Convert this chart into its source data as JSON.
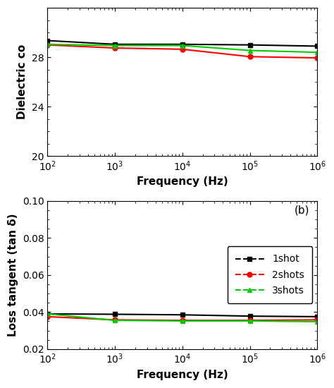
{
  "freq": [
    100.0,
    1000.0,
    10000.0,
    100000.0,
    1000000.0
  ],
  "dielectric_1shot": [
    29.35,
    29.05,
    29.05,
    29.0,
    28.9
  ],
  "dielectric_2shots": [
    29.0,
    28.75,
    28.65,
    28.05,
    27.95
  ],
  "dielectric_3shots": [
    29.05,
    28.95,
    28.95,
    28.55,
    28.4
  ],
  "loss_1shot": [
    0.039,
    0.0388,
    0.0385,
    0.0378,
    0.0375
  ],
  "loss_2shots": [
    0.0375,
    0.0358,
    0.0355,
    0.0355,
    0.0358
  ],
  "loss_3shots": [
    0.039,
    0.0355,
    0.0352,
    0.0352,
    0.0348
  ],
  "color_1shot": "#000000",
  "color_2shots": "#ff0000",
  "color_3shots": "#00cc00",
  "label_1shot": "1shot",
  "label_2shots": "2shots",
  "label_3shots": "3shots",
  "xlabel": "Frequency (Hz)",
  "ylabel_a": "Dielectric co",
  "ylabel_b": "Loss tangent (tan δ)",
  "annotation_b": "(b)",
  "ylim_a": [
    20,
    32
  ],
  "ylim_b": [
    0.02,
    0.1
  ],
  "yticks_a": [
    20,
    24,
    28
  ],
  "yticks_b": [
    0.02,
    0.04,
    0.06,
    0.08,
    0.1
  ],
  "xlim": [
    100.0,
    1000000.0
  ]
}
